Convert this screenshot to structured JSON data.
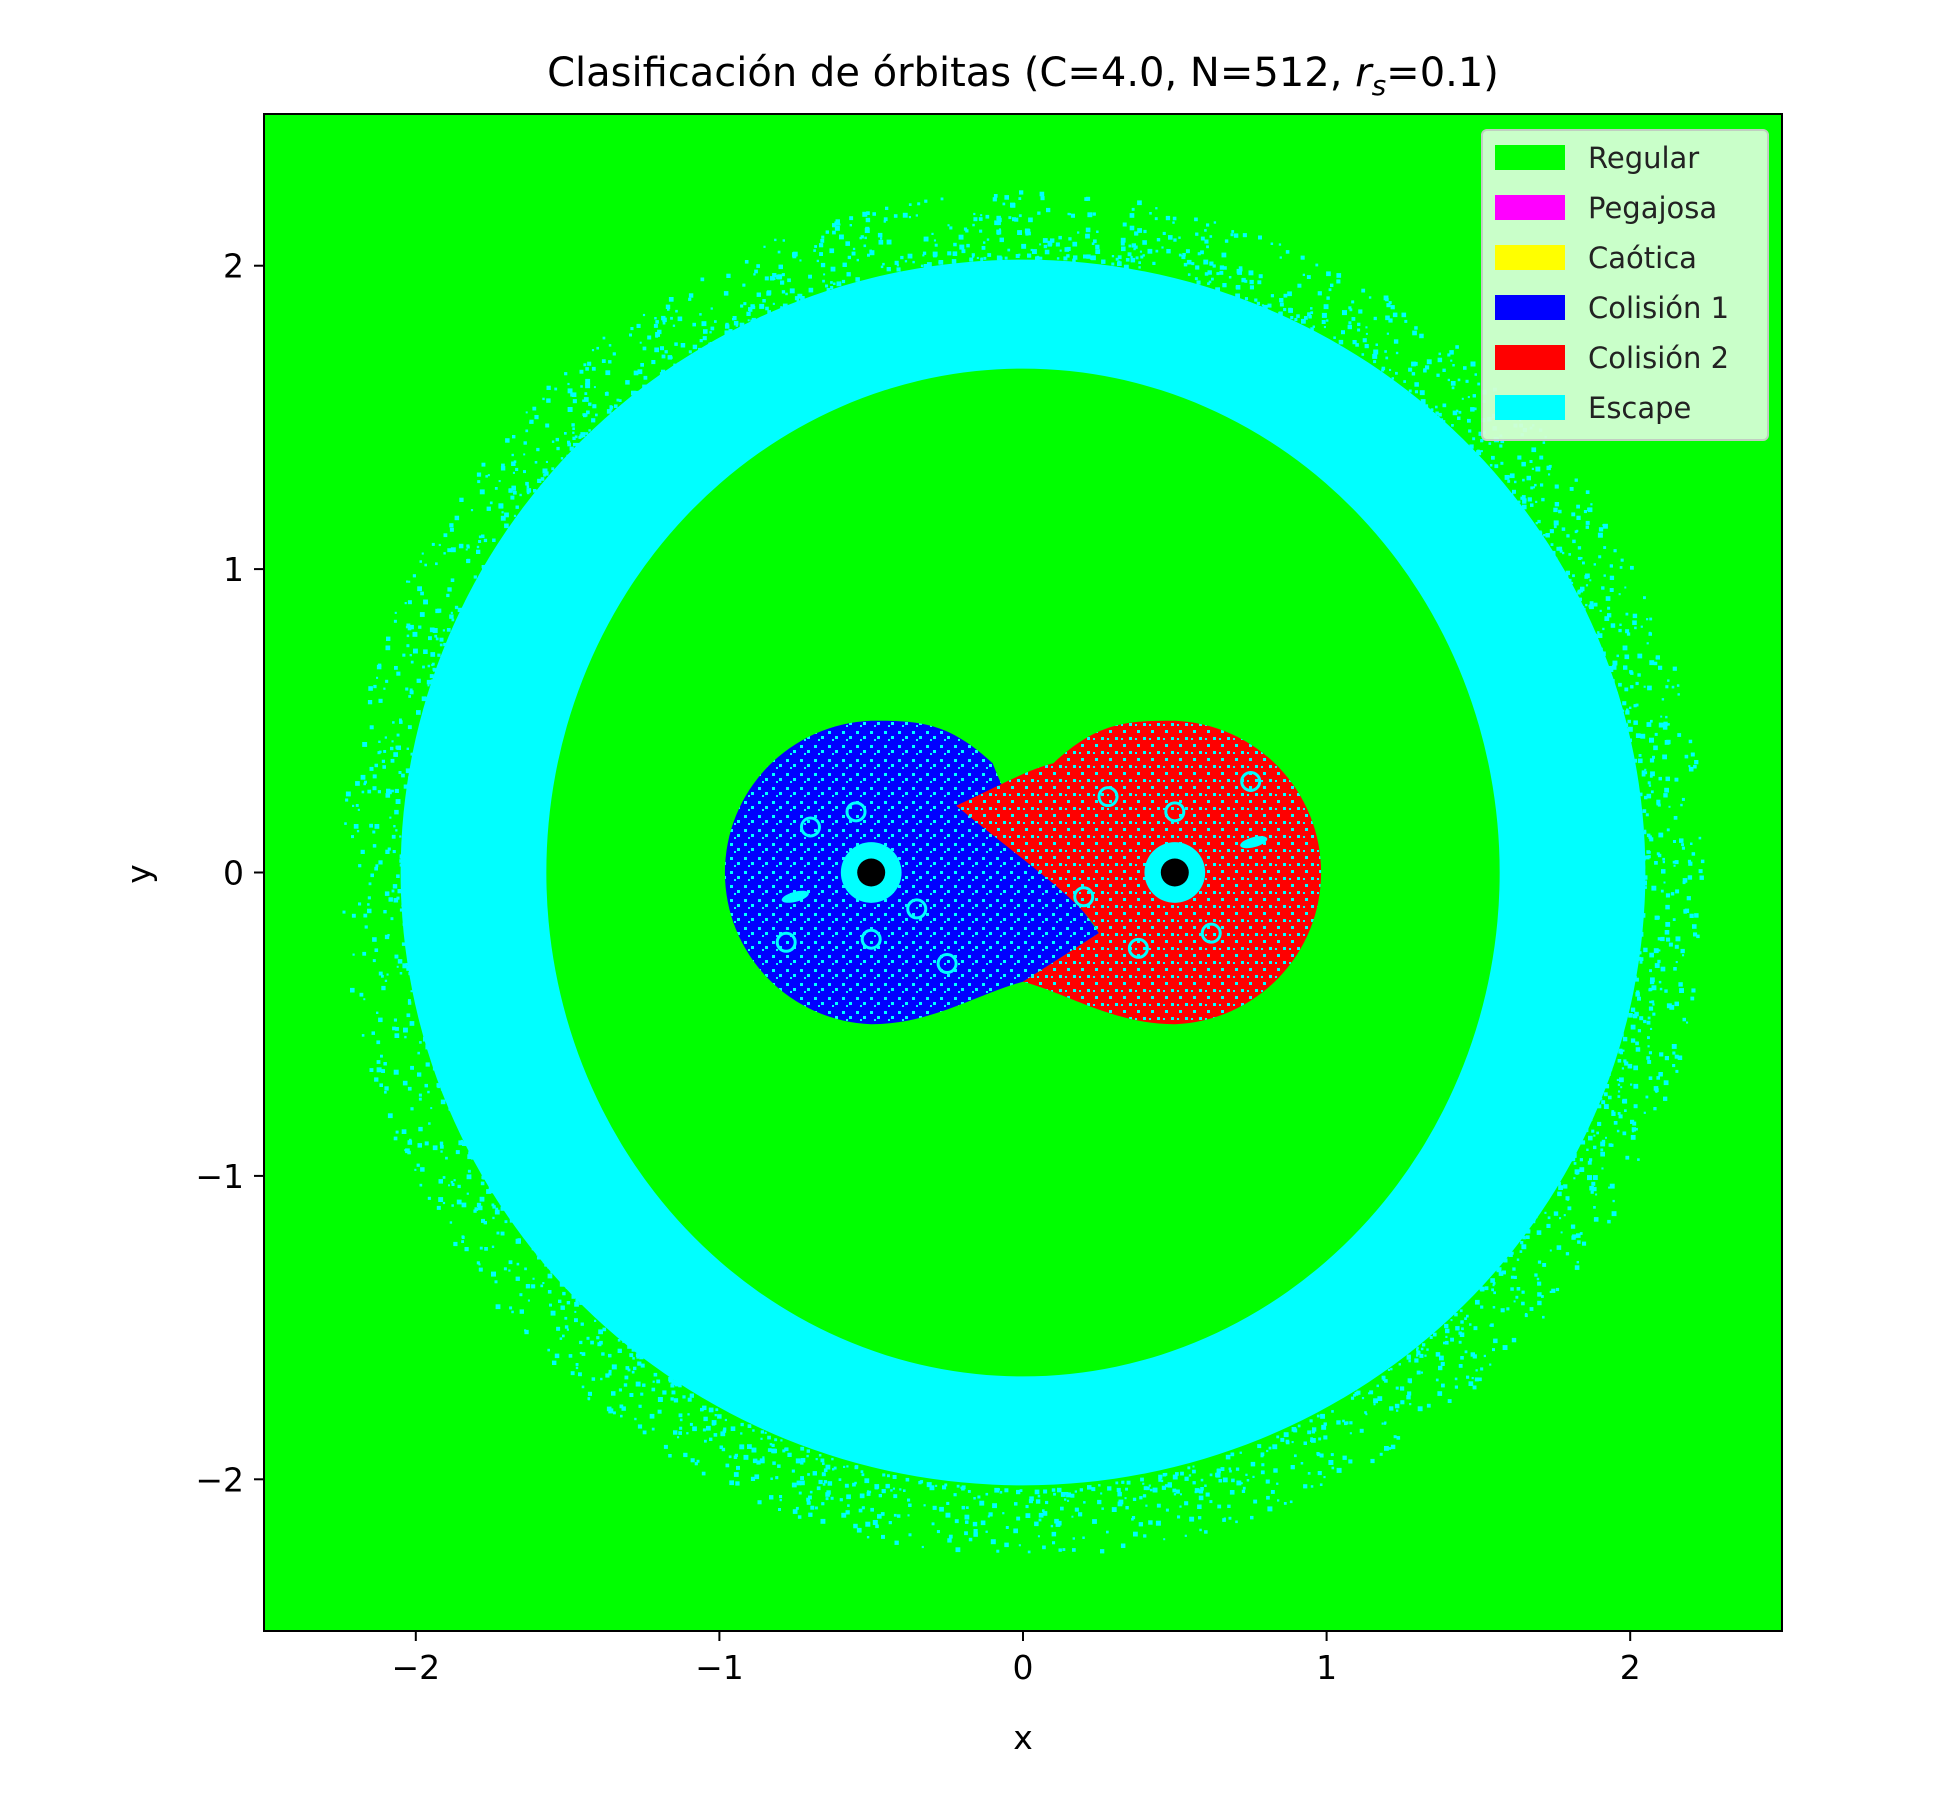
{
  "chart_data": {
    "type": "heatmap",
    "title": {
      "main": "Clasificación de órbitas (C=4.0, N=512, ",
      "sym": "r",
      "sub": "s",
      "tail": "=0.1)"
    },
    "xlabel": "x",
    "ylabel": "y",
    "xlim": [
      -2.5,
      2.5
    ],
    "ylim": [
      -2.5,
      2.5
    ],
    "x_ticks": [
      -2,
      -1,
      0,
      1,
      2
    ],
    "y_ticks": [
      -2,
      -1,
      0,
      1,
      2
    ],
    "x_tick_labels": [
      "−2",
      "−1",
      "0",
      "1",
      "2"
    ],
    "y_tick_labels": [
      "−2",
      "−1",
      "0",
      "1",
      "2"
    ],
    "grid": false,
    "legend_position": "top-right",
    "legend": [
      {
        "label": "Regular",
        "color": "#00ff00"
      },
      {
        "label": "Pegajosa",
        "color": "#ff00ff"
      },
      {
        "label": "Caótica",
        "color": "#ffff00"
      },
      {
        "label": "Colisión 1",
        "color": "#0000ff"
      },
      {
        "label": "Colisión 2",
        "color": "#ff0000"
      },
      {
        "label": "Escape",
        "color": "#00ffff"
      }
    ],
    "primaries": [
      {
        "x": -0.5,
        "y": 0,
        "color": "#000000"
      },
      {
        "x": 0.5,
        "y": 0,
        "color": "#000000"
      }
    ],
    "regions": {
      "background_class": "Regular",
      "escape_ring": {
        "class": "Escape",
        "inner_radius_x": 1.57,
        "inner_radius_y": 1.66,
        "outer_radius_x": 2.05,
        "outer_radius_y": 2.02
      },
      "scatter_band": {
        "class": "Regular",
        "inner_radius": 2.0,
        "outer_radius": 2.25
      },
      "collision_1": {
        "class": "Colisión 1",
        "center_x": -0.5,
        "radius": 0.5
      },
      "collision_2": {
        "class": "Colisión 2",
        "center_x": 0.5,
        "radius": 0.5
      },
      "escape_halo_radius": 0.1
    }
  }
}
